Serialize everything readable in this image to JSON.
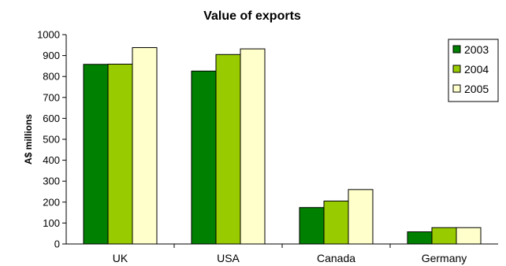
{
  "chart_data": {
    "type": "bar",
    "title": "Value of exports",
    "xlabel": "",
    "ylabel": "A$ millions",
    "categories": [
      "UK",
      "USA",
      "Canada",
      "Germany"
    ],
    "series": [
      {
        "name": "2003",
        "values": [
          858,
          826,
          174,
          58
        ],
        "color": "#008000"
      },
      {
        "name": "2004",
        "values": [
          859,
          905,
          205,
          78
        ],
        "color": "#99CC00"
      },
      {
        "name": "2005",
        "values": [
          938,
          932,
          260,
          78
        ],
        "color": "#FFFFCC"
      }
    ],
    "ylim": [
      0,
      1000
    ],
    "yticks": [
      "0",
      "100",
      "200",
      "300",
      "400",
      "500",
      "600",
      "700",
      "800",
      "900",
      "1000"
    ],
    "grid": false,
    "legend_position": "top-right",
    "legend": [
      "2003",
      "2004",
      "2005"
    ]
  }
}
